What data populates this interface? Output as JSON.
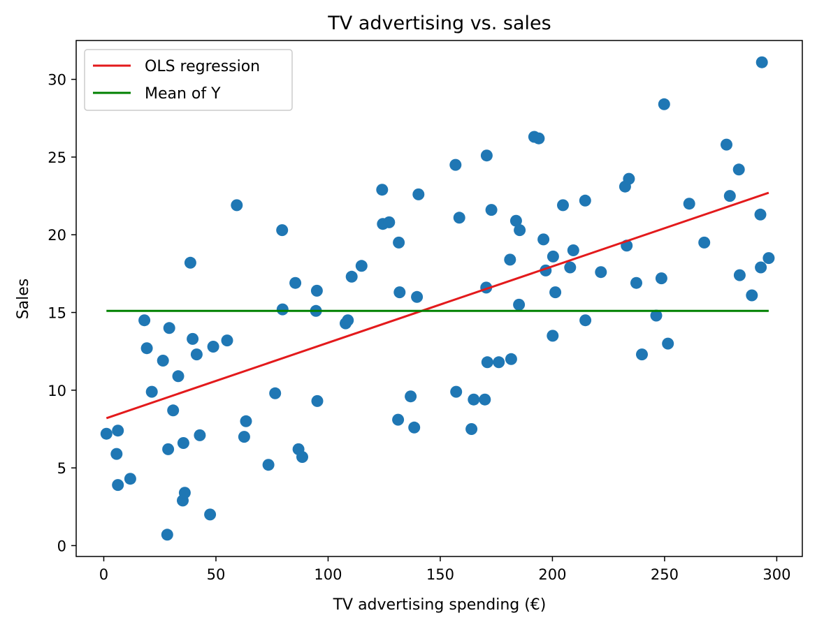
{
  "chart_data": {
    "type": "scatter",
    "title": "TV advertising vs. sales",
    "xlabel": "TV advertising spending (€)",
    "ylabel": "Sales",
    "xlim": [
      -12.3,
      311.4
    ],
    "ylim": [
      -0.7,
      32.5
    ],
    "xticks": [
      0,
      50,
      100,
      150,
      200,
      250,
      300
    ],
    "yticks": [
      0,
      5,
      10,
      15,
      20,
      25,
      30
    ],
    "grid": false,
    "legend_position": "upper-left",
    "colors": {
      "points": "#1f77b4",
      "regression": "#e31a1c",
      "mean": "#008000"
    },
    "legend": [
      {
        "label": "OLS regression",
        "color": "#e31a1c"
      },
      {
        "label": "Mean of Y",
        "color": "#008000"
      }
    ],
    "lines": [
      {
        "name": "OLS regression",
        "x": [
          1.2,
          296.4
        ],
        "y": [
          8.2,
          22.7
        ]
      },
      {
        "name": "Mean of Y",
        "x": [
          1.2,
          296.4
        ],
        "y": [
          15.1,
          15.1
        ]
      }
    ],
    "points": [
      [
        1.2,
        7.2
      ],
      [
        5.7,
        5.9
      ],
      [
        6.3,
        7.4
      ],
      [
        6.3,
        3.9
      ],
      [
        11.8,
        4.3
      ],
      [
        18.1,
        14.5
      ],
      [
        19.2,
        12.7
      ],
      [
        21.4,
        9.9
      ],
      [
        26.4,
        11.9
      ],
      [
        28.3,
        0.7
      ],
      [
        28.7,
        6.2
      ],
      [
        29.2,
        14.0
      ],
      [
        30.9,
        8.7
      ],
      [
        33.2,
        10.9
      ],
      [
        35.2,
        2.9
      ],
      [
        35.5,
        6.6
      ],
      [
        36.1,
        3.4
      ],
      [
        38.6,
        18.2
      ],
      [
        39.6,
        13.3
      ],
      [
        41.4,
        12.3
      ],
      [
        42.8,
        7.1
      ],
      [
        47.4,
        2.0
      ],
      [
        48.8,
        12.8
      ],
      [
        55.0,
        13.2
      ],
      [
        59.3,
        21.9
      ],
      [
        62.6,
        7.0
      ],
      [
        63.4,
        8.0
      ],
      [
        73.4,
        5.2
      ],
      [
        76.4,
        9.8
      ],
      [
        79.5,
        20.3
      ],
      [
        79.7,
        15.2
      ],
      [
        85.4,
        16.9
      ],
      [
        86.8,
        6.2
      ],
      [
        88.5,
        5.7
      ],
      [
        94.6,
        15.1
      ],
      [
        95.0,
        16.4
      ],
      [
        95.2,
        9.3
      ],
      [
        107.8,
        14.3
      ],
      [
        108.8,
        14.5
      ],
      [
        110.5,
        17.3
      ],
      [
        114.9,
        18.0
      ],
      [
        124.1,
        22.9
      ],
      [
        124.4,
        20.7
      ],
      [
        127.2,
        20.8
      ],
      [
        131.2,
        8.1
      ],
      [
        131.5,
        19.5
      ],
      [
        131.9,
        16.3
      ],
      [
        136.8,
        9.6
      ],
      [
        138.4,
        7.6
      ],
      [
        139.6,
        16.0
      ],
      [
        140.3,
        22.6
      ],
      [
        156.8,
        24.5
      ],
      [
        157.1,
        9.9
      ],
      [
        158.5,
        21.1
      ],
      [
        163.9,
        7.5
      ],
      [
        164.9,
        9.4
      ],
      [
        169.9,
        9.4
      ],
      [
        170.5,
        16.6
      ],
      [
        170.7,
        25.1
      ],
      [
        171.0,
        11.8
      ],
      [
        172.8,
        21.6
      ],
      [
        176.1,
        11.8
      ],
      [
        181.1,
        18.4
      ],
      [
        181.6,
        12.0
      ],
      [
        183.8,
        20.9
      ],
      [
        185.1,
        15.5
      ],
      [
        185.4,
        20.3
      ],
      [
        191.9,
        26.3
      ],
      [
        193.9,
        26.2
      ],
      [
        196.0,
        19.7
      ],
      [
        197.0,
        17.7
      ],
      [
        200.1,
        13.5
      ],
      [
        200.3,
        18.6
      ],
      [
        201.3,
        16.3
      ],
      [
        204.7,
        21.9
      ],
      [
        207.9,
        17.9
      ],
      [
        209.3,
        19.0
      ],
      [
        214.6,
        22.2
      ],
      [
        214.7,
        14.5
      ],
      [
        221.6,
        17.6
      ],
      [
        232.4,
        23.1
      ],
      [
        233.1,
        19.3
      ],
      [
        234.1,
        23.6
      ],
      [
        237.4,
        16.9
      ],
      [
        239.9,
        12.3
      ],
      [
        246.3,
        14.8
      ],
      [
        248.6,
        17.2
      ],
      [
        249.8,
        28.4
      ],
      [
        251.5,
        13.0
      ],
      [
        261.0,
        22.0
      ],
      [
        267.7,
        19.5
      ],
      [
        277.6,
        25.8
      ],
      [
        279.1,
        22.5
      ],
      [
        283.1,
        24.2
      ],
      [
        283.5,
        17.4
      ],
      [
        288.9,
        16.1
      ],
      [
        292.7,
        21.3
      ],
      [
        292.9,
        17.9
      ],
      [
        293.4,
        31.1
      ],
      [
        296.4,
        18.5
      ]
    ]
  }
}
